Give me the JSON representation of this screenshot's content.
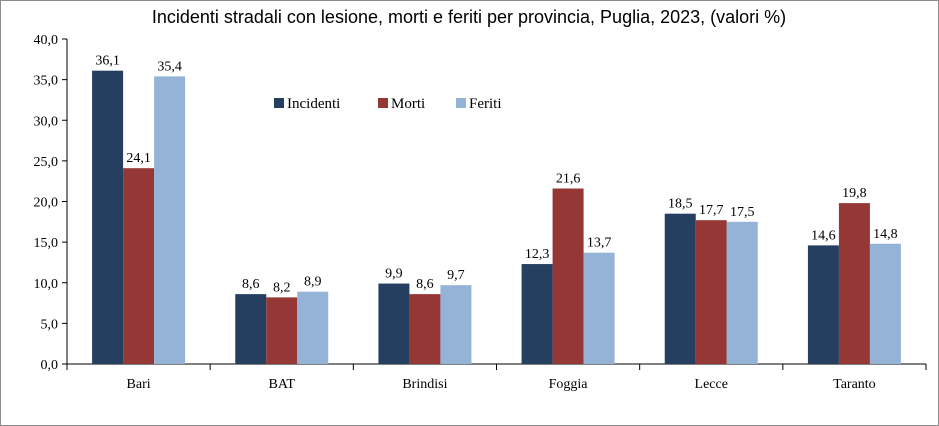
{
  "chart_data": {
    "type": "bar",
    "title": "Incidenti stradali con lesione, morti e feriti per provincia, Puglia, 2023, (valori %)",
    "xlabel": "",
    "ylabel": "",
    "ylim": [
      0,
      40
    ],
    "yticks": [
      "0,0",
      "5,0",
      "10,0",
      "15,0",
      "20,0",
      "25,0",
      "30,0",
      "35,0",
      "40,0"
    ],
    "categories": [
      "Bari",
      "BAT",
      "Brindisi",
      "Foggia",
      "Lecce",
      "Taranto"
    ],
    "legend_position": "top-center",
    "series": [
      {
        "name": "Incidenti",
        "color": "#243f60",
        "values": [
          36.1,
          8.6,
          9.9,
          12.3,
          18.5,
          14.6
        ],
        "labels": [
          "36,1",
          "8,6",
          "9,9",
          "12,3",
          "18,5",
          "14,6"
        ]
      },
      {
        "name": "Morti",
        "color": "#953735",
        "values": [
          24.1,
          8.2,
          8.6,
          21.6,
          17.7,
          19.8
        ],
        "labels": [
          "24,1",
          "8,2",
          "8,6",
          "21,6",
          "17,7",
          "19,8"
        ]
      },
      {
        "name": "Feriti",
        "color": "#95b3d7",
        "values": [
          35.4,
          8.9,
          9.7,
          13.7,
          17.5,
          14.8
        ],
        "labels": [
          "35,4",
          "8,9",
          "9,7",
          "13,7",
          "17,5",
          "14,8"
        ]
      }
    ]
  }
}
